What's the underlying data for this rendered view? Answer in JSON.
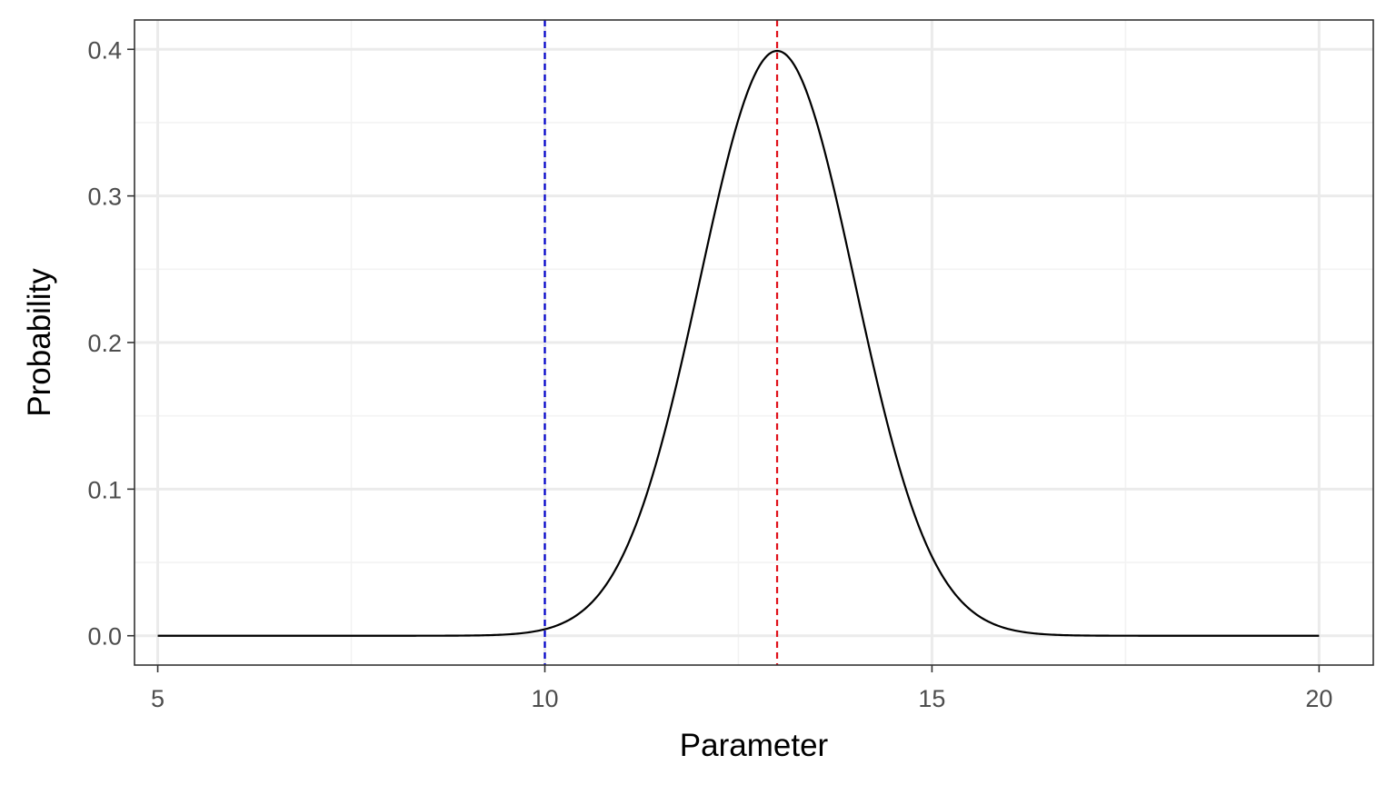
{
  "chart_data": {
    "type": "line",
    "title": "",
    "xlabel": "Parameter",
    "ylabel": "Probability",
    "xlim": [
      4.7,
      20.7
    ],
    "ylim": [
      -0.02,
      0.42
    ],
    "x_ticks": [
      5,
      10,
      15,
      20
    ],
    "x_tick_labels": [
      "5",
      "10",
      "15",
      "20"
    ],
    "y_ticks": [
      0.0,
      0.1,
      0.2,
      0.3,
      0.4
    ],
    "y_tick_labels": [
      "0.0",
      "0.1",
      "0.2",
      "0.3",
      "0.4"
    ],
    "x_minor_ticks": [
      7.5,
      12.5,
      17.5
    ],
    "y_minor_ticks": [
      0.05,
      0.15,
      0.25,
      0.35
    ],
    "grid": true,
    "curve": {
      "distribution": "normal",
      "mean": 13,
      "sd": 1,
      "x_range": [
        5,
        20
      ],
      "color": "#000000"
    },
    "vlines": [
      {
        "x": 10,
        "color": "#0000CC",
        "style": "dashed"
      },
      {
        "x": 13,
        "color": "#E0101A",
        "style": "dashed"
      }
    ],
    "colors": {
      "panel_border": "#333333",
      "grid_major": "#EBEBEB",
      "grid_minor": "#F3F3F3"
    }
  }
}
